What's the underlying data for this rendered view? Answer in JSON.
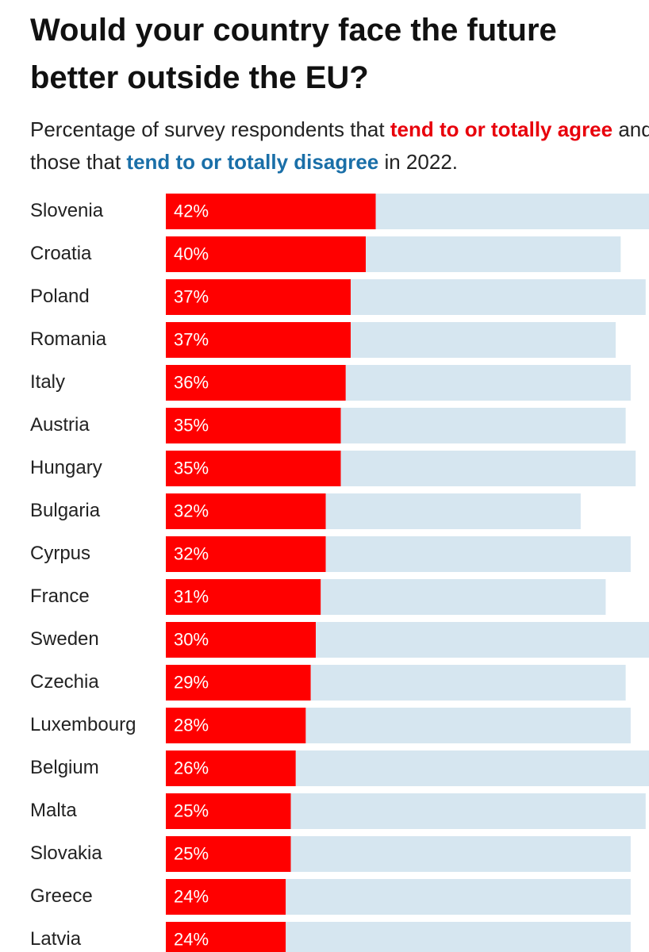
{
  "chart_data": {
    "type": "stacked-bar",
    "title": "Would your country face the future better outside the EU?",
    "subtitle_parts": [
      "Percentage of survey respondents that ",
      " and those that ",
      " in 2022."
    ],
    "categories": [
      "Slovenia",
      "Croatia",
      "Poland",
      "Romania",
      "Italy",
      "Austria",
      "Hungary",
      "Bulgaria",
      "Cyrpus",
      "France",
      "Sweden",
      "Czechia",
      "Luxembourg",
      "Belgium",
      "Malta",
      "Slovakia",
      "Greece",
      "Latvia"
    ],
    "series": [
      {
        "name": "tend to or totally agree",
        "color": "#ff0000",
        "text_color": "#e8000b",
        "values": [
          42,
          40,
          37,
          37,
          36,
          35,
          35,
          32,
          32,
          31,
          30,
          29,
          28,
          26,
          25,
          25,
          24,
          24
        ],
        "value_labels": [
          "42%",
          "40%",
          "37%",
          "37%",
          "36%",
          "35%",
          "35%",
          "32%",
          "32%",
          "31%",
          "30%",
          "29%",
          "28%",
          "26%",
          "25%",
          "25%",
          "24%",
          "24%"
        ]
      },
      {
        "name": "tend to or totally disagree",
        "color": "#d6e6f0",
        "text_color": "#1a6fa8",
        "values": [
          56,
          51,
          59,
          53,
          57,
          57,
          59,
          51,
          61,
          57,
          67,
          63,
          65,
          71,
          71,
          68,
          69,
          69
        ]
      }
    ]
  }
}
